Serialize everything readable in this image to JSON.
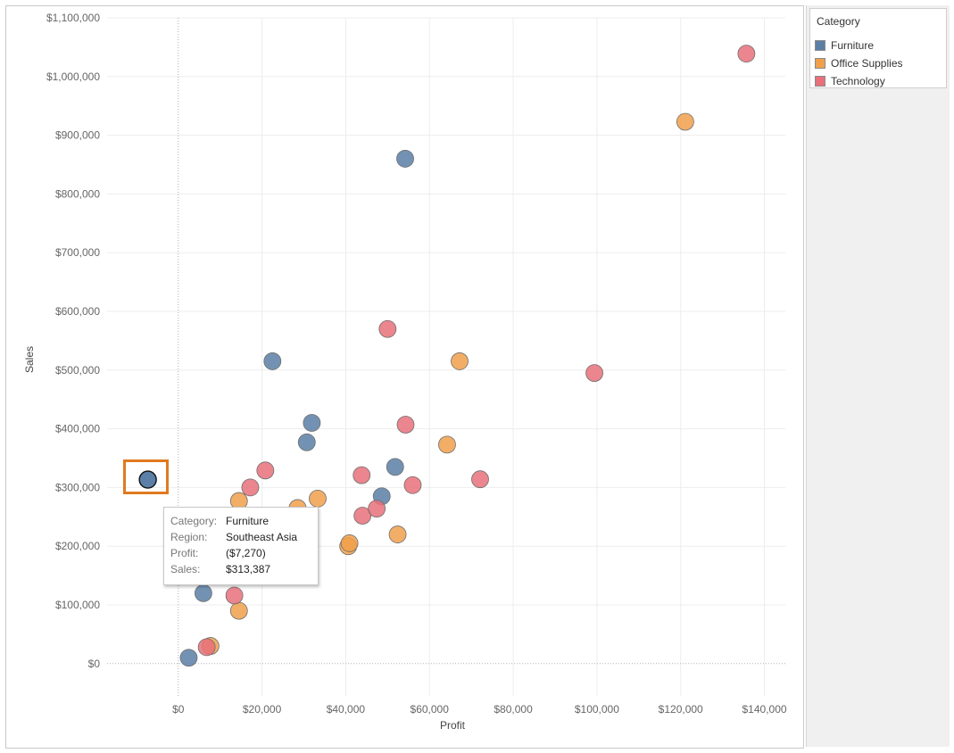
{
  "legend": {
    "title": "Category",
    "items": [
      {
        "label": "Furniture",
        "color": "#5b7fa6"
      },
      {
        "label": "Office Supplies",
        "color": "#f0a04b"
      },
      {
        "label": "Technology",
        "color": "#e8707a"
      }
    ]
  },
  "tooltip": {
    "rows": [
      {
        "key": "Category:",
        "value": "Furniture"
      },
      {
        "key": "Region:",
        "value": "Southeast Asia"
      },
      {
        "key": "Profit:",
        "value": "($7,270)"
      },
      {
        "key": "Sales:",
        "value": "$313,387"
      }
    ]
  },
  "chart_data": {
    "type": "scatter",
    "xlabel": "Profit",
    "ylabel": "Sales",
    "xlim": [
      -17000,
      145000
    ],
    "ylim": [
      -55000,
      1100000
    ],
    "x_ticks": [
      0,
      20000,
      40000,
      60000,
      80000,
      100000,
      120000,
      140000
    ],
    "x_tick_labels": [
      "$0",
      "$20,000",
      "$40,000",
      "$60,000",
      "$80,000",
      "$100,000",
      "$120,000",
      "$140,000"
    ],
    "y_ticks": [
      0,
      100000,
      200000,
      300000,
      400000,
      500000,
      600000,
      700000,
      800000,
      900000,
      1000000,
      1100000
    ],
    "y_tick_labels": [
      "$0",
      "$100,000",
      "$200,000",
      "$300,000",
      "$400,000",
      "$500,000",
      "$600,000",
      "$700,000",
      "$800,000",
      "$900,000",
      "$1,000,000",
      "$1,100,000"
    ],
    "grid": true,
    "legend_position": "right",
    "series": [
      {
        "name": "Furniture",
        "color": "#5b7fa6",
        "points": [
          {
            "x": 2500,
            "y": 10000
          },
          {
            "x": 6000,
            "y": 120000
          },
          {
            "x": 22500,
            "y": 515000
          },
          {
            "x": 30700,
            "y": 377000
          },
          {
            "x": 31900,
            "y": 410000
          },
          {
            "x": 48600,
            "y": 285000
          },
          {
            "x": 51800,
            "y": 335000
          },
          {
            "x": 54200,
            "y": 860000
          },
          {
            "x": -7270,
            "y": 313387
          }
        ]
      },
      {
        "name": "Office Supplies",
        "color": "#f0a04b",
        "points": [
          {
            "x": 7700,
            "y": 30000
          },
          {
            "x": 14500,
            "y": 90000
          },
          {
            "x": 14500,
            "y": 277000
          },
          {
            "x": 28500,
            "y": 265000
          },
          {
            "x": 33300,
            "y": 281000
          },
          {
            "x": 40600,
            "y": 200000
          },
          {
            "x": 40900,
            "y": 205000
          },
          {
            "x": 52400,
            "y": 220000
          },
          {
            "x": 64200,
            "y": 373000
          },
          {
            "x": 67200,
            "y": 515000
          },
          {
            "x": 121100,
            "y": 923000
          }
        ]
      },
      {
        "name": "Technology",
        "color": "#e8707a",
        "points": [
          {
            "x": 6800,
            "y": 28000
          },
          {
            "x": 13400,
            "y": 116000
          },
          {
            "x": 17200,
            "y": 300000
          },
          {
            "x": 20800,
            "y": 329000
          },
          {
            "x": 43800,
            "y": 321000
          },
          {
            "x": 44000,
            "y": 252000
          },
          {
            "x": 47400,
            "y": 264000
          },
          {
            "x": 50000,
            "y": 570000
          },
          {
            "x": 54300,
            "y": 407000
          },
          {
            "x": 56000,
            "y": 304000
          },
          {
            "x": 72100,
            "y": 314000
          },
          {
            "x": 99400,
            "y": 495000
          },
          {
            "x": 135700,
            "y": 1039000
          }
        ]
      }
    ]
  }
}
